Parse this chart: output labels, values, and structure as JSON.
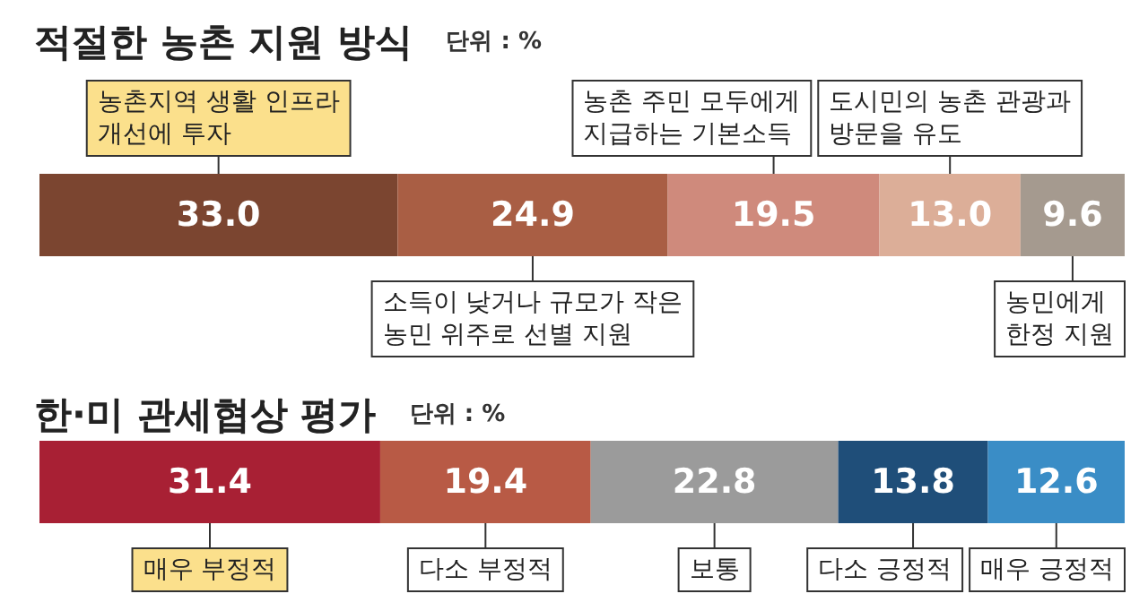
{
  "chart_data": [
    {
      "type": "bar",
      "title": "적절한 농촌 지원 방식",
      "subtitle": "단위 : %",
      "orientation": "horizontal",
      "stacked": true,
      "tick_labels": false,
      "legend": false,
      "xlim": [
        0,
        100
      ],
      "categories": [
        null
      ],
      "series": [
        {
          "name": "농촌지역 생활 인프라\n개선에 투자",
          "color": "#7b4530",
          "values": [
            33.0
          ],
          "value_labels": [
            "33.0"
          ]
        },
        {
          "name": "소득이 낮거나 규모가 작은\n농민 위주로 선별 지원",
          "color": "#a95e44",
          "values": [
            24.9
          ],
          "value_labels": [
            "24.9"
          ]
        },
        {
          "name": "농촌 주민 모두에게\n지급하는 기본소득",
          "color": "#cf8a7c",
          "values": [
            19.5
          ],
          "value_labels": [
            "19.5"
          ]
        },
        {
          "name": "도시민의 농촌 관광과\n방문을 유도",
          "color": "#dcae98",
          "values": [
            13.0
          ],
          "value_labels": [
            "13.0"
          ]
        },
        {
          "name": "농민에게\n한정 지원",
          "color": "#a59a8f",
          "values": [
            9.6
          ],
          "value_labels": [
            "9.6"
          ]
        }
      ]
    },
    {
      "type": "bar",
      "title": "한·미 관세협상 평가",
      "subtitle": "단위 : %",
      "orientation": "horizontal",
      "stacked": true,
      "tick_labels": false,
      "legend": false,
      "xlim": [
        0,
        100
      ],
      "categories": [
        null
      ],
      "series": [
        {
          "name": "매우 부정적",
          "color": "#a82034",
          "values": [
            31.4
          ],
          "value_labels": [
            "31.4"
          ]
        },
        {
          "name": "다소 부정적",
          "color": "#b85a45",
          "values": [
            19.4
          ],
          "value_labels": [
            "19.4"
          ]
        },
        {
          "name": "보통",
          "color": "#9b9b9b",
          "values": [
            22.8
          ],
          "value_labels": [
            "22.8"
          ]
        },
        {
          "name": "다소 긍정적",
          "color": "#1f4e79",
          "values": [
            13.8
          ],
          "value_labels": [
            "13.8"
          ]
        },
        {
          "name": "매우 긍정적",
          "color": "#3a8dc6",
          "values": [
            12.6
          ],
          "value_labels": [
            "12.6"
          ]
        }
      ]
    }
  ]
}
